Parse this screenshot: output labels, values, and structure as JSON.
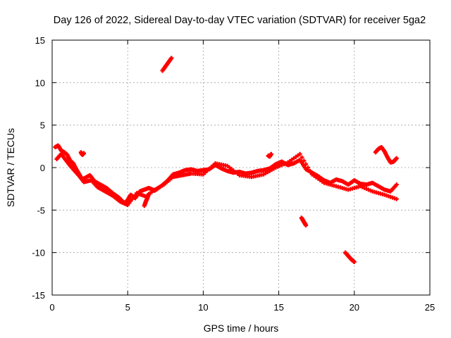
{
  "chart_data": {
    "type": "scatter",
    "title": "Day 126 of 2022, Sidereal Day-to-day VTEC variation (SDTVAR) for receiver 5ga2",
    "xlabel": "GPS time / hours",
    "ylabel": "SDTVAR / TECUs",
    "xlim": [
      0,
      25
    ],
    "ylim": [
      -15,
      15
    ],
    "xticks": [
      0,
      5,
      10,
      15,
      20,
      25
    ],
    "yticks": [
      -15,
      -10,
      -5,
      0,
      5,
      10,
      15
    ],
    "xtick_labels": [
      "0",
      "5",
      "10",
      "15",
      "20",
      "25"
    ],
    "ytick_labels": [
      "-15",
      "-10",
      "-5",
      "0",
      "5",
      "10",
      "15"
    ],
    "grid": true,
    "marker": "plus",
    "series": [
      {
        "name": "SDTVAR",
        "color": "#ff0000",
        "tracks": [
          {
            "x": [
              0.2,
              0.4,
              0.6,
              0.8,
              1.0,
              1.2,
              1.4,
              1.6,
              1.8,
              2.0,
              2.2,
              2.5,
              2.8,
              3.2,
              3.6,
              4.0,
              4.4,
              4.8,
              5.0,
              5.2,
              5.5,
              5.8,
              6.1,
              6.4,
              6.8,
              7.2,
              7.6,
              8.0,
              8.4,
              8.8,
              9.2,
              9.6,
              10.0,
              10.4,
              10.8,
              11.2,
              11.6,
              12.0,
              12.4,
              12.8,
              13.2,
              13.6,
              14.0,
              14.4,
              14.8,
              15.2,
              15.6,
              16.0,
              16.4,
              16.8,
              17.2,
              17.6,
              18.0,
              18.4,
              18.8,
              19.2,
              19.6,
              20.0,
              20.4,
              20.8,
              21.2,
              21.6,
              22.0,
              22.4,
              22.8
            ],
            "y": [
              2.4,
              2.6,
              2.0,
              1.8,
              1.5,
              0.8,
              0.5,
              -0.2,
              -0.8,
              -1.4,
              -1.2,
              -0.9,
              -1.6,
              -2.0,
              -2.4,
              -3.0,
              -3.5,
              -4.2,
              -3.8,
              -3.2,
              -3.6,
              -2.8,
              -2.6,
              -2.4,
              -2.7,
              -2.2,
              -1.6,
              -0.8,
              -0.6,
              -0.3,
              -0.2,
              -0.4,
              -0.3,
              -0.2,
              0.3,
              -0.1,
              -0.4,
              -0.6,
              -0.5,
              -0.7,
              -0.6,
              -0.4,
              -0.3,
              -0.1,
              0.4,
              0.7,
              0.3,
              0.5,
              0.9,
              -0.2,
              -0.6,
              -1.0,
              -1.5,
              -1.8,
              -1.4,
              -1.6,
              -2.0,
              -1.5,
              -1.9,
              -2.0,
              -1.8,
              -2.2,
              -2.6,
              -2.8,
              -2.0
            ]
          },
          {
            "x": [
              0.3,
              0.6,
              0.9,
              1.2,
              1.5,
              1.8,
              2.1,
              2.6,
              3.0,
              3.5,
              4.0,
              4.5,
              5.0,
              5.6,
              6.2,
              6.8,
              7.4,
              8.0,
              8.6,
              9.2,
              10.0,
              10.8,
              11.6,
              12.4,
              13.2,
              14.0,
              14.8,
              15.6,
              16.4,
              17.2,
              18.0,
              18.8,
              19.6,
              20.4,
              21.2,
              22.0,
              22.8
            ],
            "y": [
              1.0,
              1.6,
              0.9,
              0.2,
              -0.4,
              -1.0,
              -1.7,
              -1.5,
              -2.3,
              -2.8,
              -3.3,
              -4.0,
              -4.4,
              -3.0,
              -3.4,
              -2.6,
              -2.0,
              -1.1,
              -0.9,
              -0.7,
              -0.8,
              0.5,
              0.2,
              -0.9,
              -1.1,
              -0.8,
              0.0,
              0.6,
              1.6,
              -0.8,
              -1.8,
              -2.2,
              -2.6,
              -2.2,
              -2.8,
              -3.2,
              -3.7
            ]
          },
          {
            "x": [
              7.3,
              7.5,
              7.7,
              7.9
            ],
            "y": [
              11.4,
              11.9,
              12.4,
              12.9
            ]
          },
          {
            "x": [
              16.5,
              16.6,
              16.7,
              16.8
            ],
            "y": [
              -5.9,
              -6.2,
              -6.5,
              -6.8
            ]
          },
          {
            "x": [
              19.4,
              19.6,
              19.8,
              20.0
            ],
            "y": [
              -10.0,
              -10.4,
              -10.8,
              -11.1
            ]
          },
          {
            "x": [
              21.4,
              21.6,
              21.8,
              22.0,
              22.2,
              22.4,
              22.6,
              22.8
            ],
            "y": [
              1.8,
              2.2,
              2.4,
              1.9,
              1.2,
              0.6,
              0.7,
              1.1
            ]
          },
          {
            "x": [
              1.9,
              2.0,
              2.1
            ],
            "y": [
              1.8,
              1.5,
              1.7
            ]
          },
          {
            "x": [
              14.3,
              14.4,
              14.5
            ],
            "y": [
              1.4,
              1.3,
              1.6
            ]
          },
          {
            "x": [
              6.1,
              6.2,
              6.3,
              6.4
            ],
            "y": [
              -4.5,
              -4.0,
              -3.6,
              -3.1
            ]
          }
        ]
      }
    ]
  }
}
